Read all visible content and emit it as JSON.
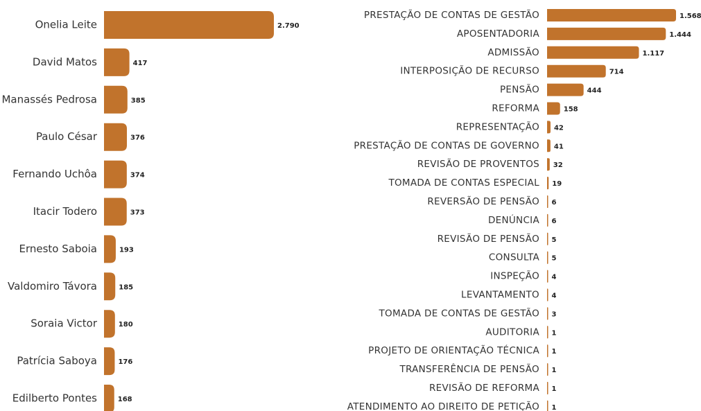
{
  "chart_data": [
    {
      "type": "hbar",
      "color": "#c1732c",
      "categories": [
        "Onelia Leite",
        "David Matos",
        "Manassés Pedrosa",
        "Paulo César",
        "Fernando Uchôa",
        "Itacir Todero",
        "Ernesto Saboia",
        "Valdomiro Távora",
        "Soraia Victor",
        "Patrícia Saboya",
        "Edilberto Pontes"
      ],
      "values": [
        2790,
        417,
        385,
        376,
        374,
        373,
        193,
        185,
        180,
        176,
        168
      ],
      "value_labels": [
        "2.790",
        "417",
        "385",
        "376",
        "374",
        "373",
        "193",
        "185",
        "180",
        "176",
        "168"
      ]
    },
    {
      "type": "hbar",
      "color": "#c1732c",
      "categories": [
        "PRESTAÇÃO DE CONTAS DE GESTÃO",
        "APOSENTADORIA",
        "ADMISSÃO",
        "INTERPOSIÇÃO DE RECURSO",
        "PENSÃO",
        "REFORMA",
        "REPRESENTAÇÃO",
        "PRESTAÇÃO DE CONTAS DE GOVERNO",
        "REVISÃO DE PROVENTOS",
        "TOMADA DE CONTAS ESPECIAL",
        "REVERSÃO DE PENSÃO",
        "DENÚNCIA",
        "REVISÃO DE PENSÃO",
        "CONSULTA",
        "INSPEÇÃO",
        "LEVANTAMENTO",
        "TOMADA DE CONTAS DE GESTÃO",
        "AUDITORIA",
        "PROJETO DE ORIENTAÇÃO TÉCNICA",
        "TRANSFERÊNCIA DE PENSÃO",
        "REVISÃO DE REFORMA",
        "ATENDIMENTO AO DIREITO DE PETIÇÃO"
      ],
      "values": [
        1568,
        1444,
        1117,
        714,
        444,
        158,
        42,
        41,
        32,
        19,
        6,
        6,
        5,
        5,
        4,
        4,
        3,
        1,
        1,
        1,
        1,
        1
      ],
      "value_labels": [
        "1.568",
        "1.444",
        "1.117",
        "714",
        "444",
        "158",
        "42",
        "41",
        "32",
        "19",
        "6",
        "6",
        "5",
        "5",
        "4",
        "4",
        "3",
        "1",
        "1",
        "1",
        "1",
        "1"
      ]
    }
  ]
}
